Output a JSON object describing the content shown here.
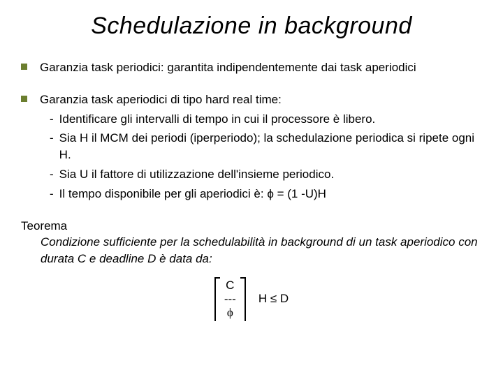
{
  "title": "Schedulazione in background",
  "bullets": [
    {
      "text": "Garanzia task periodici: garantita indipendentemente dai task aperiodici",
      "subs": []
    },
    {
      "text": "Garanzia task aperiodici di tipo hard real time:",
      "subs": [
        "Identificare gli intervalli di tempo in cui il processore è libero.",
        "Sia H il MCM dei periodi (iperperiodo); la schedulazione periodica si ripete ogni H.",
        "Sia U il fattore di utilizzazione dell'insieme periodico.",
        "Il tempo disponibile per gli aperiodici è:     ϕ = (1 -U)H"
      ]
    }
  ],
  "theorem": {
    "label": "Teorema",
    "body": "Condizione sufficiente per la schedulabilità in background di un task aperiodico con durata C e deadline D è data da:"
  },
  "formula": {
    "numerator": "C",
    "mid": "---",
    "denominator": "ϕ",
    "relation": "H ≤ D"
  },
  "style": {
    "bullet_color": "#6b7e2f",
    "title_fontsize": 34,
    "body_fontsize": 17,
    "background": "#ffffff",
    "text_color": "#000000"
  }
}
